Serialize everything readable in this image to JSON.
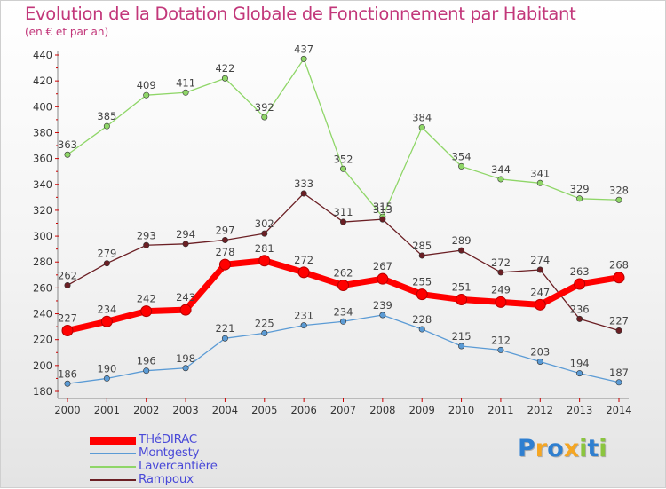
{
  "chart_data": {
    "type": "line",
    "title": "Evolution de la Dotation Globale de Fonctionnement par Habitant",
    "subtitle": "(en € et par an)",
    "x": [
      2000,
      2001,
      2002,
      2003,
      2004,
      2005,
      2006,
      2007,
      2008,
      2009,
      2010,
      2011,
      2012,
      2013,
      2014
    ],
    "ylim": [
      180,
      440
    ],
    "yticks": [
      180,
      200,
      220,
      240,
      260,
      280,
      300,
      320,
      340,
      360,
      380,
      400,
      420,
      440
    ],
    "grid": false,
    "legend_position": "bottom-left",
    "series": [
      {
        "name": "Lavercantière",
        "color": "#8fd668",
        "values": [
          363,
          385,
          409,
          411,
          422,
          392,
          437,
          352,
          315,
          384,
          354,
          344,
          341,
          329,
          328
        ]
      },
      {
        "name": "Rampoux",
        "color": "#6b1f24",
        "values": [
          262,
          279,
          293,
          294,
          297,
          302,
          333,
          311,
          313,
          285,
          289,
          272,
          274,
          236,
          227
        ]
      },
      {
        "name": "Montgesty",
        "color": "#5b9bd5",
        "values": [
          186,
          190,
          196,
          198,
          221,
          225,
          231,
          234,
          239,
          228,
          215,
          212,
          203,
          194,
          187
        ]
      },
      {
        "name": "THéDIRAC",
        "color": "#ff0000",
        "values": [
          227,
          234,
          242,
          243,
          278,
          281,
          272,
          262,
          267,
          255,
          251,
          249,
          247,
          263,
          268
        ]
      }
    ]
  },
  "legend": {
    "items": [
      {
        "label": "THéDIRAC",
        "color": "#ff0000"
      },
      {
        "label": "Montgesty",
        "color": "#5b9bd5"
      },
      {
        "label": "Lavercantière",
        "color": "#8fd668"
      },
      {
        "label": "Rampoux",
        "color": "#6b1f24"
      }
    ]
  },
  "logo": {
    "letters": [
      {
        "ch": "P",
        "color": "#2f7fd0"
      },
      {
        "ch": "r",
        "color": "#f5a623"
      },
      {
        "ch": "o",
        "color": "#2f7fd0"
      },
      {
        "ch": "x",
        "color": "#f5a623"
      },
      {
        "ch": "i",
        "color": "#8bc53f"
      },
      {
        "ch": "t",
        "color": "#2f7fd0"
      },
      {
        "ch": "i",
        "color": "#8bc53f"
      }
    ]
  }
}
